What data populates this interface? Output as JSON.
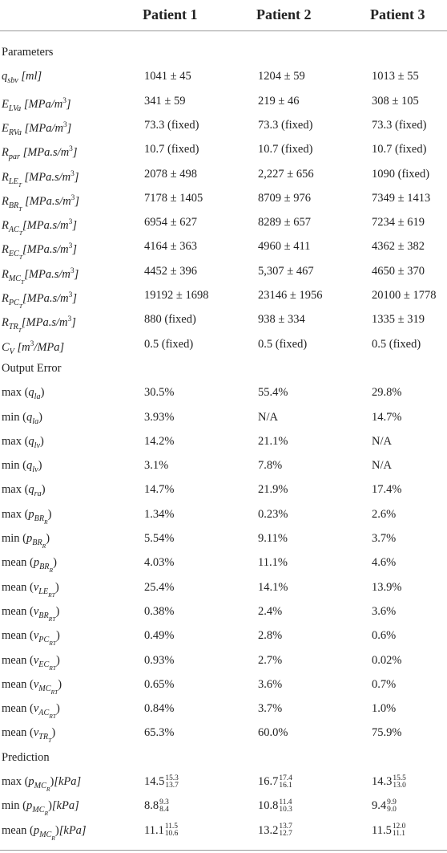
{
  "columns": [
    "Patient 1",
    "Patient 2",
    "Patient 3"
  ],
  "sections": [
    {
      "title": "Parameters",
      "rows": [
        {
          "label": [
            {
              "text": "q",
              "style": "i"
            },
            {
              "text": "sbv",
              "style": "sub"
            },
            {
              "text": " [ml]",
              "style": "i"
            }
          ],
          "cells": [
            "1041 ± 45",
            "1204 ± 59",
            "1013 ± 55"
          ]
        },
        {
          "label": [
            {
              "text": "E",
              "style": "i"
            },
            {
              "text": "LVa",
              "style": "sub"
            },
            {
              "text": " [MPa/m",
              "style": "i"
            },
            {
              "text": "3",
              "style": "sup"
            },
            {
              "text": "]",
              "style": "i"
            }
          ],
          "cells": [
            "341 ± 59",
            "219 ± 46",
            "308 ± 105"
          ]
        },
        {
          "label": [
            {
              "text": "E",
              "style": "i"
            },
            {
              "text": "RVa",
              "style": "sub"
            },
            {
              "text": " [MPa/m",
              "style": "i"
            },
            {
              "text": "3",
              "style": "sup"
            },
            {
              "text": "]",
              "style": "i"
            }
          ],
          "cells": [
            "73.3 (fixed)",
            "73.3 (fixed)",
            "73.3 (fixed)"
          ]
        },
        {
          "label": [
            {
              "text": "R",
              "style": "i"
            },
            {
              "text": "par",
              "style": "sub"
            },
            {
              "text": " [MPa.s/m",
              "style": "i"
            },
            {
              "text": "3",
              "style": "sup"
            },
            {
              "text": "]",
              "style": "i"
            }
          ],
          "cells": [
            "10.7 (fixed)",
            "10.7 (fixed)",
            "10.7 (fixed)"
          ]
        },
        {
          "label": [
            {
              "text": "R",
              "style": "i"
            },
            {
              "text": "LE",
              "style": "sub"
            },
            {
              "text": "T",
              "style": "ss"
            },
            {
              "text": " [MPa.s/m",
              "style": "i"
            },
            {
              "text": "3",
              "style": "sup"
            },
            {
              "text": "]",
              "style": "i"
            }
          ],
          "cells": [
            "2078 ± 498",
            "2,227 ± 656",
            "1090 (fixed)"
          ]
        },
        {
          "label": [
            {
              "text": "R",
              "style": "i"
            },
            {
              "text": "BR",
              "style": "sub"
            },
            {
              "text": "T",
              "style": "ss"
            },
            {
              "text": " [MPa.s/m",
              "style": "i"
            },
            {
              "text": "3",
              "style": "sup"
            },
            {
              "text": "]",
              "style": "i"
            }
          ],
          "cells": [
            "7178 ± 1405",
            "8709 ± 976",
            "7349 ± 1413"
          ]
        },
        {
          "label": [
            {
              "text": "R",
              "style": "i"
            },
            {
              "text": "AC",
              "style": "sub"
            },
            {
              "text": "T",
              "style": "ss"
            },
            {
              "text": "[MPa.s/m",
              "style": "i"
            },
            {
              "text": "3",
              "style": "sup"
            },
            {
              "text": "]",
              "style": "i"
            }
          ],
          "cells": [
            "6954 ± 627",
            "8289 ± 657",
            "7234 ± 619"
          ]
        },
        {
          "label": [
            {
              "text": "R",
              "style": "i"
            },
            {
              "text": "EC",
              "style": "sub"
            },
            {
              "text": "T",
              "style": "ss"
            },
            {
              "text": "[MPa.s/m",
              "style": "i"
            },
            {
              "text": "3",
              "style": "sup"
            },
            {
              "text": "]",
              "style": "i"
            }
          ],
          "cells": [
            "4164 ± 363",
            "4960 ± 411",
            "4362 ± 382"
          ]
        },
        {
          "label": [
            {
              "text": "R",
              "style": "i"
            },
            {
              "text": "MC",
              "style": "sub"
            },
            {
              "text": "T",
              "style": "ss"
            },
            {
              "text": "[MPa.s/m",
              "style": "i"
            },
            {
              "text": "3",
              "style": "sup"
            },
            {
              "text": "]",
              "style": "i"
            }
          ],
          "cells": [
            "4452 ± 396",
            "5,307 ± 467",
            "4650 ± 370"
          ]
        },
        {
          "label": [
            {
              "text": "R",
              "style": "i"
            },
            {
              "text": "PC",
              "style": "sub"
            },
            {
              "text": "T",
              "style": "ss"
            },
            {
              "text": "[MPa.s/m",
              "style": "i"
            },
            {
              "text": "3",
              "style": "sup"
            },
            {
              "text": "]",
              "style": "i"
            }
          ],
          "cells": [
            "19192 ± 1698",
            "23146 ± 1956",
            "20100 ± 1778"
          ]
        },
        {
          "label": [
            {
              "text": "R",
              "style": "i"
            },
            {
              "text": "TR",
              "style": "sub"
            },
            {
              "text": "T",
              "style": "ss"
            },
            {
              "text": "[MPa.s/m",
              "style": "i"
            },
            {
              "text": "3",
              "style": "sup"
            },
            {
              "text": "]",
              "style": "i"
            }
          ],
          "cells": [
            "880 (fixed)",
            "938 ± 334",
            "1335 ± 319"
          ]
        },
        {
          "label": [
            {
              "text": "C",
              "style": "i"
            },
            {
              "text": "V",
              "style": "sub"
            },
            {
              "text": " [m",
              "style": "i"
            },
            {
              "text": "3",
              "style": "sup"
            },
            {
              "text": "/MPa]",
              "style": "i"
            }
          ],
          "cells": [
            "0.5 (fixed)",
            "0.5 (fixed)",
            "0.5 (fixed)"
          ]
        }
      ]
    },
    {
      "title": "Output Error",
      "rows": [
        {
          "label": [
            {
              "text": "max (",
              "style": "n"
            },
            {
              "text": "q",
              "style": "i"
            },
            {
              "text": "la",
              "style": "sub"
            },
            {
              "text": ")",
              "style": "n"
            }
          ],
          "cells": [
            "30.5%",
            "55.4%",
            "29.8%"
          ]
        },
        {
          "label": [
            {
              "text": "min (",
              "style": "n"
            },
            {
              "text": "q",
              "style": "i"
            },
            {
              "text": "la",
              "style": "sub"
            },
            {
              "text": ")",
              "style": "n"
            }
          ],
          "cells": [
            "3.93%",
            "N/A",
            "14.7%"
          ]
        },
        {
          "label": [
            {
              "text": "max (",
              "style": "n"
            },
            {
              "text": "q",
              "style": "i"
            },
            {
              "text": "lv",
              "style": "sub"
            },
            {
              "text": ")",
              "style": "n"
            }
          ],
          "cells": [
            "14.2%",
            "21.1%",
            "N/A"
          ]
        },
        {
          "label": [
            {
              "text": "min (",
              "style": "n"
            },
            {
              "text": "q",
              "style": "i"
            },
            {
              "text": "lv",
              "style": "sub"
            },
            {
              "text": ")",
              "style": "n"
            }
          ],
          "cells": [
            "3.1%",
            "7.8%",
            "N/A"
          ]
        },
        {
          "label": [
            {
              "text": "max (",
              "style": "n"
            },
            {
              "text": "q",
              "style": "i"
            },
            {
              "text": "ra",
              "style": "sub"
            },
            {
              "text": ")",
              "style": "n"
            }
          ],
          "cells": [
            "14.7%",
            "21.9%",
            "17.4%"
          ]
        },
        {
          "label": [
            {
              "text": "max (",
              "style": "n"
            },
            {
              "text": "p",
              "style": "i"
            },
            {
              "text": "BR",
              "style": "sub"
            },
            {
              "text": "R",
              "style": "ss"
            },
            {
              "text": ")",
              "style": "n"
            }
          ],
          "cells": [
            "1.34%",
            "0.23%",
            "2.6%"
          ]
        },
        {
          "label": [
            {
              "text": "min (",
              "style": "n"
            },
            {
              "text": "p",
              "style": "i"
            },
            {
              "text": "BR",
              "style": "sub"
            },
            {
              "text": "R",
              "style": "ss"
            },
            {
              "text": ")",
              "style": "n"
            }
          ],
          "cells": [
            "5.54%",
            "9.11%",
            "3.7%"
          ]
        },
        {
          "label": [
            {
              "text": "mean (",
              "style": "n"
            },
            {
              "text": "p",
              "style": "i"
            },
            {
              "text": "BR",
              "style": "sub"
            },
            {
              "text": "R",
              "style": "ss"
            },
            {
              "text": ")",
              "style": "n"
            }
          ],
          "cells": [
            "4.03%",
            "11.1%",
            "4.6%"
          ]
        },
        {
          "label": [
            {
              "text": "mean (",
              "style": "n"
            },
            {
              "text": "ν",
              "style": "i"
            },
            {
              "text": "LE",
              "style": "sub"
            },
            {
              "text": "RT",
              "style": "ss"
            },
            {
              "text": ")",
              "style": "n"
            }
          ],
          "cells": [
            "25.4%",
            "14.1%",
            "13.9%"
          ]
        },
        {
          "label": [
            {
              "text": "mean (",
              "style": "n"
            },
            {
              "text": "ν",
              "style": "i"
            },
            {
              "text": "BR",
              "style": "sub"
            },
            {
              "text": "RT",
              "style": "ss"
            },
            {
              "text": ")",
              "style": "n"
            }
          ],
          "cells": [
            "0.38%",
            "2.4%",
            "3.6%"
          ]
        },
        {
          "label": [
            {
              "text": "mean (",
              "style": "n"
            },
            {
              "text": "ν",
              "style": "i"
            },
            {
              "text": "PC",
              "style": "sub"
            },
            {
              "text": "RT",
              "style": "ss"
            },
            {
              "text": ")",
              "style": "n"
            }
          ],
          "cells": [
            "0.49%",
            "2.8%",
            "0.6%"
          ]
        },
        {
          "label": [
            {
              "text": "mean (",
              "style": "n"
            },
            {
              "text": "ν",
              "style": "i"
            },
            {
              "text": "EC",
              "style": "sub"
            },
            {
              "text": "RT",
              "style": "ss"
            },
            {
              "text": ")",
              "style": "n"
            }
          ],
          "cells": [
            "0.93%",
            "2.7%",
            "0.02%"
          ]
        },
        {
          "label": [
            {
              "text": "mean (",
              "style": "n"
            },
            {
              "text": "ν",
              "style": "i"
            },
            {
              "text": "MC",
              "style": "sub"
            },
            {
              "text": "RT",
              "style": "ss"
            },
            {
              "text": ")",
              "style": "n"
            }
          ],
          "cells": [
            "0.65%",
            "3.6%",
            "0.7%"
          ]
        },
        {
          "label": [
            {
              "text": "mean (",
              "style": "n"
            },
            {
              "text": "ν",
              "style": "i"
            },
            {
              "text": "AC",
              "style": "sub"
            },
            {
              "text": "RT",
              "style": "ss"
            },
            {
              "text": ")",
              "style": "n"
            }
          ],
          "cells": [
            "0.84%",
            "3.7%",
            "1.0%"
          ]
        },
        {
          "label": [
            {
              "text": "mean (",
              "style": "n"
            },
            {
              "text": "ν",
              "style": "i"
            },
            {
              "text": "TR",
              "style": "sub"
            },
            {
              "text": "T",
              "style": "ss"
            },
            {
              "text": ")",
              "style": "n"
            }
          ],
          "cells": [
            "65.3%",
            "60.0%",
            "75.9%"
          ]
        }
      ]
    },
    {
      "title": "Prediction",
      "rows": [
        {
          "label": [
            {
              "text": "max (",
              "style": "n"
            },
            {
              "text": "p",
              "style": "i"
            },
            {
              "text": "MC",
              "style": "sub"
            },
            {
              "text": "R",
              "style": "ss"
            },
            {
              "text": ")",
              "style": "n"
            },
            {
              "text": "[kPa]",
              "style": "i"
            }
          ],
          "cells": [
            {
              "value": "14.5",
              "upper": "15.3",
              "lower": "13.7"
            },
            {
              "value": "16.7",
              "upper": "17.4",
              "lower": "16.1"
            },
            {
              "value": "14.3",
              "upper": "15.5",
              "lower": "13.0"
            }
          ]
        },
        {
          "label": [
            {
              "text": "min (",
              "style": "n"
            },
            {
              "text": "p",
              "style": "i"
            },
            {
              "text": "MC",
              "style": "sub"
            },
            {
              "text": "R",
              "style": "ss"
            },
            {
              "text": ")",
              "style": "n"
            },
            {
              "text": "[kPa]",
              "style": "i"
            }
          ],
          "cells": [
            {
              "value": "8.8",
              "upper": "9.3",
              "lower": "8.4"
            },
            {
              "value": "10.8",
              "upper": "11.4",
              "lower": "10.3"
            },
            {
              "value": "9.4",
              "upper": "9.9",
              "lower": "9.0"
            }
          ]
        },
        {
          "label": [
            {
              "text": "mean (",
              "style": "n"
            },
            {
              "text": "p",
              "style": "i"
            },
            {
              "text": "MC",
              "style": "sub"
            },
            {
              "text": "R",
              "style": "ss"
            },
            {
              "text": ")",
              "style": "n"
            },
            {
              "text": "[kPa]",
              "style": "i"
            }
          ],
          "cells": [
            {
              "value": "11.1",
              "upper": "11.5",
              "lower": "10.6"
            },
            {
              "value": "13.2",
              "upper": "13.7",
              "lower": "12.7"
            },
            {
              "value": "11.5",
              "upper": "12.0",
              "lower": "11.1"
            }
          ]
        }
      ]
    }
  ]
}
